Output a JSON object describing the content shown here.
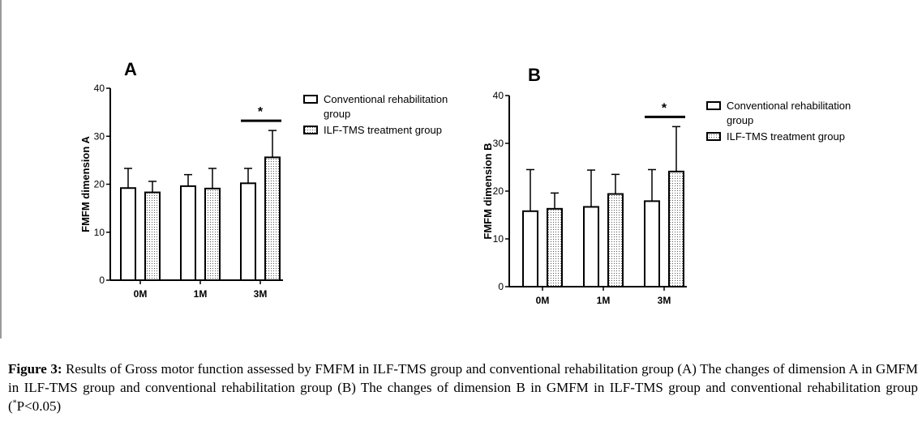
{
  "chart_data": [
    {
      "type": "bar",
      "panel_label": "A",
      "categories": [
        "0M",
        "1M",
        "3M"
      ],
      "ylabel": "FMFM dimension A",
      "ylim": [
        0,
        40
      ],
      "yticks": [
        "0",
        "10",
        "20",
        "30",
        "40"
      ],
      "series": [
        {
          "name": "Conventional rehabilitation group",
          "values": [
            19.2,
            19.6,
            20.2
          ],
          "errors": [
            4.1,
            2.4,
            3.1
          ],
          "fill": "plain"
        },
        {
          "name": "ILF-TMS treatment group",
          "values": [
            18.3,
            19.1,
            25.6
          ],
          "errors": [
            2.3,
            4.2,
            5.6
          ],
          "fill": "dotted"
        }
      ],
      "significance": {
        "category": "3M",
        "label": "*"
      },
      "legend_position": "right"
    },
    {
      "type": "bar",
      "panel_label": "B",
      "categories": [
        "0M",
        "1M",
        "3M"
      ],
      "ylabel": "FMFM dimension B",
      "ylim": [
        0,
        40
      ],
      "yticks": [
        "0",
        "10",
        "20",
        "30",
        "40"
      ],
      "series": [
        {
          "name": "Conventional rehabilitation group",
          "values": [
            15.8,
            16.7,
            17.9
          ],
          "errors": [
            8.7,
            7.7,
            6.6
          ],
          "fill": "plain"
        },
        {
          "name": "ILF-TMS treatment group",
          "values": [
            16.3,
            19.4,
            24.1
          ],
          "errors": [
            3.3,
            4.1,
            9.4
          ],
          "fill": "dotted"
        }
      ],
      "significance": {
        "category": "3M",
        "label": "*"
      },
      "legend_position": "right"
    }
  ],
  "caption": {
    "label": "Figure 3:",
    "text": " Results of Gross motor function assessed by FMFM in ILF-TMS group and conventional rehabilitation group (A) The changes of dimension A in GMFM in ILF-TMS group and conventional rehabilitation group (B) The changes of dimension B in GMFM in ILF-TMS group and conventional rehabilitation group (",
    "sup": "*",
    "tail": "P<0.05)"
  }
}
